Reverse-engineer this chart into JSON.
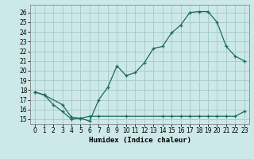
{
  "xlabel": "Humidex (Indice chaleur)",
  "background_color": "#cce8e8",
  "grid_color": "#aacccc",
  "line_color": "#1a6b5a",
  "xlim": [
    -0.5,
    23.5
  ],
  "ylim": [
    14.5,
    26.8
  ],
  "xticks": [
    0,
    1,
    2,
    3,
    4,
    5,
    6,
    7,
    8,
    9,
    10,
    11,
    12,
    13,
    14,
    15,
    16,
    17,
    18,
    19,
    20,
    21,
    22,
    23
  ],
  "yticks": [
    15,
    16,
    17,
    18,
    19,
    20,
    21,
    22,
    23,
    24,
    25,
    26
  ],
  "line1_x": [
    0,
    1,
    2,
    3,
    4,
    5,
    6,
    7,
    8,
    9,
    10,
    11,
    12,
    13,
    14,
    15,
    16,
    17,
    18,
    19,
    20,
    21,
    22,
    23
  ],
  "line1_y": [
    17.8,
    17.5,
    16.5,
    15.8,
    15.0,
    15.1,
    14.8,
    17.0,
    18.3,
    20.5,
    19.5,
    19.8,
    20.8,
    22.3,
    22.5,
    23.9,
    24.7,
    26.0,
    26.1,
    26.1,
    25.0,
    22.5,
    21.5,
    21.0
  ],
  "line2_x": [
    0,
    1,
    3,
    4,
    5,
    6,
    7,
    10,
    14,
    15,
    16,
    17,
    18,
    19,
    20,
    21,
    22,
    23
  ],
  "line2_y": [
    17.8,
    17.5,
    16.5,
    15.2,
    15.1,
    15.3,
    15.3,
    15.3,
    15.3,
    15.3,
    15.3,
    15.3,
    15.3,
    15.3,
    15.3,
    15.3,
    15.3,
    15.8
  ],
  "font_family": "monospace"
}
